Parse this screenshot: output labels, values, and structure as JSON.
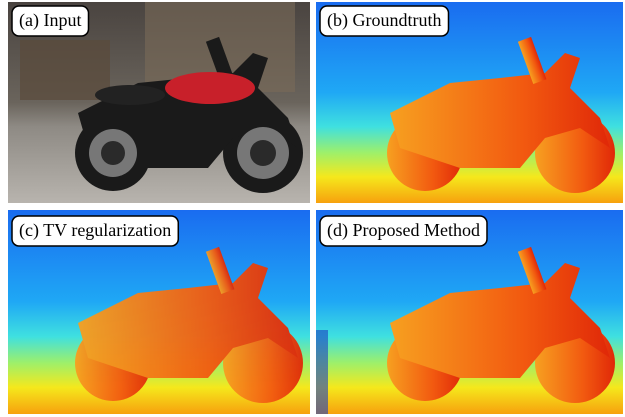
{
  "panels": [
    {
      "label": "(a) Input"
    },
    {
      "label": "(b) Groundtruth"
    },
    {
      "label": "(c) TV regularization"
    },
    {
      "label": "(d) Proposed Method"
    }
  ]
}
